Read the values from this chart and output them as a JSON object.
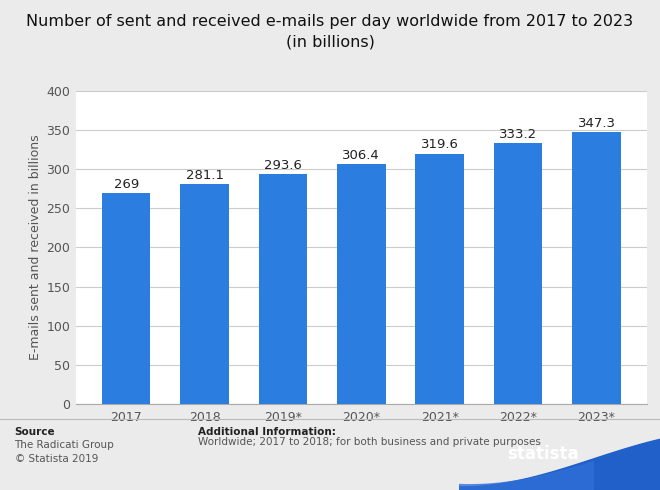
{
  "title_line1": "Number of sent and received e-mails per day worldwide from 2017 to 2023",
  "title_line2": "(in billions)",
  "categories": [
    "2017",
    "2018",
    "2019*",
    "2020*",
    "2021*",
    "2022*",
    "2023*"
  ],
  "values": [
    269,
    281.1,
    293.6,
    306.4,
    319.6,
    333.2,
    347.3
  ],
  "bar_color": "#2b7de0",
  "ylabel": "E-mails sent and received in billions",
  "ylim": [
    0,
    400
  ],
  "yticks": [
    0,
    50,
    100,
    150,
    200,
    250,
    300,
    350,
    400
  ],
  "background_color": "#ebebeb",
  "plot_bg_color": "#ffffff",
  "grid_color": "#cccccc",
  "source_bold": "Source",
  "source_text": "The Radicati Group\n© Statista 2019",
  "additional_bold": "Additional Information:",
  "additional_text": "Worldwide; 2017 to 2018; for both business and private purposes",
  "statista_bg": "#1a2e4a",
  "statista_wave_color": "#2060c0",
  "title_fontsize": 11.5,
  "label_fontsize": 9,
  "tick_fontsize": 9,
  "footer_fontsize": 7.5,
  "bar_label_fontsize": 9.5
}
